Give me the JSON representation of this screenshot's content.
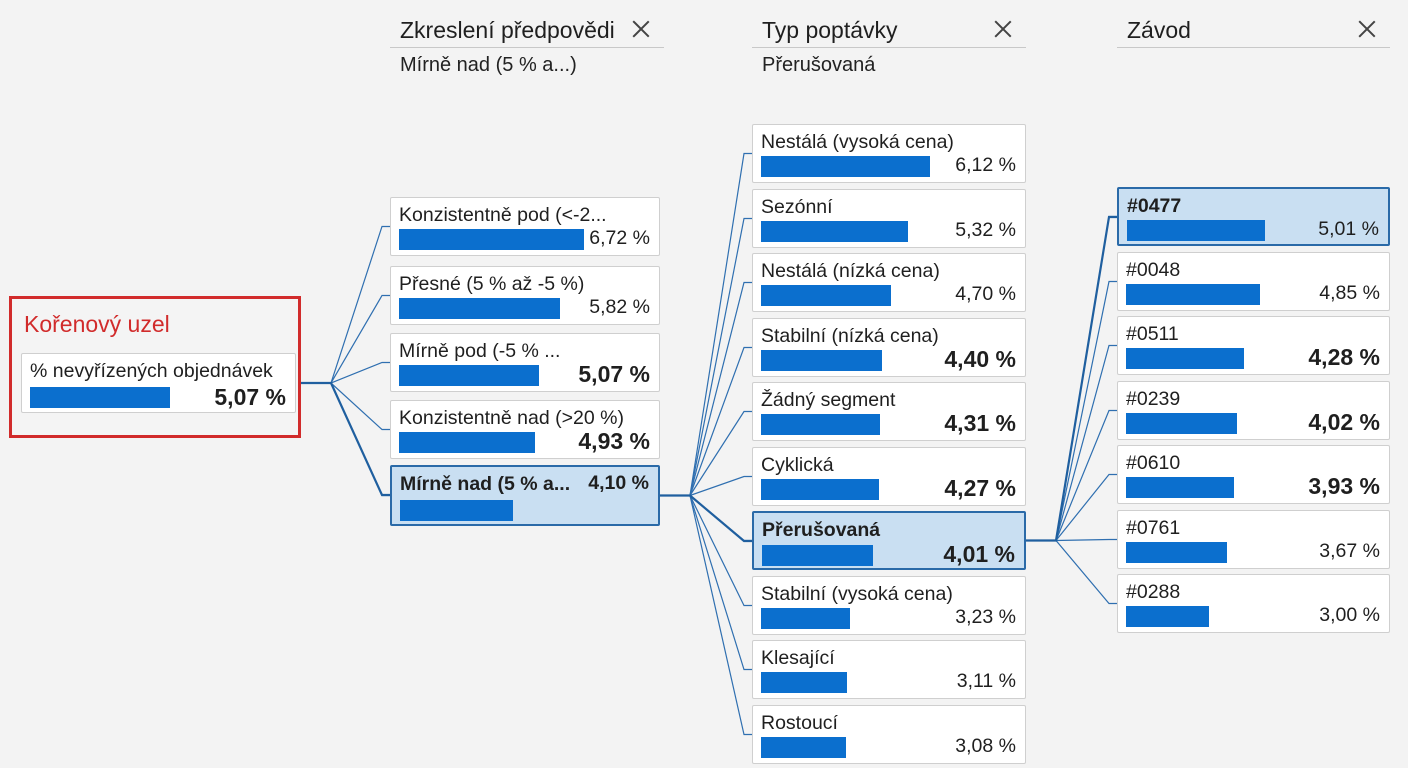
{
  "root": {
    "title": "Kořenový uzel",
    "node": {
      "label": "% nevyřízených objednávek",
      "value": "5,07 %",
      "pct": 5.07,
      "emphasis": true
    }
  },
  "levels": [
    {
      "title": "Zkreslení předpovědi",
      "selection": "Mírně nad (5 % a...)",
      "nodes": [
        {
          "label": "Konzistentně pod (<-2...",
          "value": "6,72 %",
          "pct": 6.72,
          "emphasis": false,
          "selected": false
        },
        {
          "label": "Přesné (5 % až -5 %)",
          "value": "5,82 %",
          "pct": 5.82,
          "emphasis": false,
          "selected": false
        },
        {
          "label": "Mírně pod (-5 % ...",
          "value": "5,07 %",
          "pct": 5.07,
          "emphasis": true,
          "selected": false
        },
        {
          "label": "Konzistentně nad (>20 %)",
          "value": "4,93 %",
          "pct": 4.93,
          "emphasis": true,
          "selected": false
        },
        {
          "label": "Mírně nad (5 % a...",
          "value": "4,10 %",
          "pct": 4.1,
          "emphasis": false,
          "selected": true
        }
      ]
    },
    {
      "title": "Typ poptávky",
      "selection": "Přerušovaná",
      "nodes": [
        {
          "label": "Nestálá (vysoká cena)",
          "value": "6,12 %",
          "pct": 6.12,
          "emphasis": false,
          "selected": false
        },
        {
          "label": "Sezónní",
          "value": "5,32 %",
          "pct": 5.32,
          "emphasis": false,
          "selected": false
        },
        {
          "label": "Nestálá (nízká cena)",
          "value": "4,70 %",
          "pct": 4.7,
          "emphasis": false,
          "selected": false
        },
        {
          "label": "Stabilní (nízká cena)",
          "value": "4,40 %",
          "pct": 4.4,
          "emphasis": true,
          "selected": false
        },
        {
          "label": "Žádný segment",
          "value": "4,31 %",
          "pct": 4.31,
          "emphasis": true,
          "selected": false
        },
        {
          "label": "Cyklická",
          "value": "4,27 %",
          "pct": 4.27,
          "emphasis": true,
          "selected": false
        },
        {
          "label": "Přerušovaná",
          "value": "4,01 %",
          "pct": 4.01,
          "emphasis": true,
          "selected": true
        },
        {
          "label": "Stabilní (vysoká cena)",
          "value": "3,23 %",
          "pct": 3.23,
          "emphasis": false,
          "selected": false
        },
        {
          "label": "Klesající",
          "value": "3,11 %",
          "pct": 3.11,
          "emphasis": false,
          "selected": false
        },
        {
          "label": "Rostoucí",
          "value": "3,08 %",
          "pct": 3.08,
          "emphasis": false,
          "selected": false
        }
      ]
    },
    {
      "title": "Závod",
      "selection": "",
      "nodes": [
        {
          "label": "#0477",
          "value": "5,01 %",
          "pct": 5.01,
          "emphasis": false,
          "selected": true
        },
        {
          "label": "#0048",
          "value": "4,85 %",
          "pct": 4.85,
          "emphasis": false,
          "selected": false
        },
        {
          "label": "#0511",
          "value": "4,28 %",
          "pct": 4.28,
          "emphasis": true,
          "selected": false
        },
        {
          "label": "#0239",
          "value": "4,02 %",
          "pct": 4.02,
          "emphasis": true,
          "selected": false
        },
        {
          "label": "#0610",
          "value": "3,93 %",
          "pct": 3.93,
          "emphasis": true,
          "selected": false
        },
        {
          "label": "#0761",
          "value": "3,67 %",
          "pct": 3.67,
          "emphasis": false,
          "selected": false
        },
        {
          "label": "#0288",
          "value": "3,00 %",
          "pct": 3.0,
          "emphasis": false,
          "selected": false
        }
      ]
    }
  ],
  "colors": {
    "bar": "#0b6fce",
    "root_frame": "#d12b2b",
    "selected_fill": "#c9dff2",
    "selected_border": "#2a6aa8",
    "connector": "#2f6fb0"
  },
  "icons": {
    "remove_level": "close-icon"
  }
}
